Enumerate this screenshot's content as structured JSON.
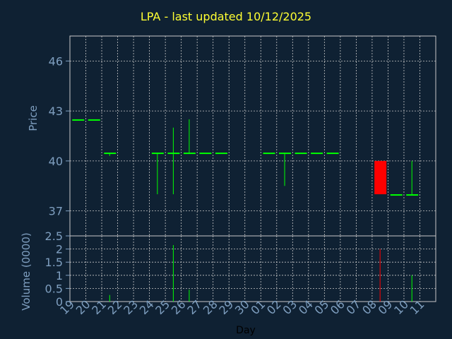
{
  "header": {
    "title": "LPA - last updated 10/12/2025"
  },
  "colors": {
    "background": "#0f2133",
    "axis_text": "#7f9fc0",
    "title": "#ffff33",
    "grid": "#c8c8c8",
    "up": "#00ff00",
    "down": "#ff0000"
  },
  "chart_data": [
    {
      "type": "candlestick",
      "title": "LPA - last updated 10/12/2025",
      "ylabel": "Price",
      "ylim": [
        35.5,
        47.5
      ],
      "yticks": [
        "37",
        "40",
        "43",
        "46"
      ],
      "ytick_values": [
        37,
        40,
        43,
        46
      ],
      "grid": true,
      "categories": [
        "19",
        "20",
        "21",
        "22",
        "23",
        "24",
        "25",
        "26",
        "27",
        "28",
        "29",
        "30",
        "01",
        "02",
        "03",
        "04",
        "05",
        "06",
        "07",
        "08",
        "09",
        "10",
        "11"
      ],
      "candles": [
        {
          "x": "19",
          "open": 42.5,
          "high": 42.5,
          "low": 42.5,
          "close": 42.5
        },
        {
          "x": "20",
          "open": 42.5,
          "high": 42.5,
          "low": 42.5,
          "close": 42.5
        },
        {
          "x": "21",
          "open": 40.5,
          "high": 40.5,
          "low": 40.3,
          "close": 40.5
        },
        {
          "x": "24",
          "open": 40.5,
          "high": 40.5,
          "low": 38.0,
          "close": 40.5
        },
        {
          "x": "25",
          "open": 40.5,
          "high": 42.0,
          "low": 38.0,
          "close": 40.5
        },
        {
          "x": "26",
          "open": 40.5,
          "high": 42.5,
          "low": 40.5,
          "close": 40.5
        },
        {
          "x": "27",
          "open": 40.5,
          "high": 40.5,
          "low": 40.5,
          "close": 40.5
        },
        {
          "x": "28",
          "open": 40.5,
          "high": 40.5,
          "low": 40.5,
          "close": 40.5
        },
        {
          "x": "01",
          "open": 40.5,
          "high": 40.5,
          "low": 40.5,
          "close": 40.5
        },
        {
          "x": "02",
          "open": 40.5,
          "high": 40.5,
          "low": 38.5,
          "close": 40.5
        },
        {
          "x": "03",
          "open": 40.5,
          "high": 40.5,
          "low": 40.5,
          "close": 40.5
        },
        {
          "x": "04",
          "open": 40.5,
          "high": 40.5,
          "low": 40.5,
          "close": 40.5
        },
        {
          "x": "05",
          "open": 40.5,
          "high": 40.5,
          "low": 40.5,
          "close": 40.5
        },
        {
          "x": "08",
          "open": 40.0,
          "high": 40.0,
          "low": 38.0,
          "close": 38.0
        },
        {
          "x": "09",
          "open": 38.0,
          "high": 38.0,
          "low": 38.0,
          "close": 38.0
        },
        {
          "x": "10",
          "open": 38.0,
          "high": 40.0,
          "low": 38.0,
          "close": 38.0
        }
      ]
    },
    {
      "type": "bar",
      "ylabel": "Volume (0000)",
      "xlabel": "Day",
      "ylim": [
        0,
        2.5
      ],
      "yticks": [
        "0",
        "0.5",
        "1",
        "1.5",
        "2",
        "2.5"
      ],
      "ytick_values": [
        0,
        0.5,
        1,
        1.5,
        2,
        2.5
      ],
      "grid": true,
      "categories": [
        "19",
        "20",
        "21",
        "22",
        "23",
        "24",
        "25",
        "26",
        "27",
        "28",
        "29",
        "30",
        "01",
        "02",
        "03",
        "04",
        "05",
        "06",
        "07",
        "08",
        "09",
        "10",
        "11"
      ],
      "bars": [
        {
          "x": "21",
          "value": 0.25,
          "color": "#00ff00"
        },
        {
          "x": "25",
          "value": 2.15,
          "color": "#00ff00"
        },
        {
          "x": "26",
          "value": 0.45,
          "color": "#00ff00"
        },
        {
          "x": "08",
          "value": 2.0,
          "color": "#ff0000"
        },
        {
          "x": "10",
          "value": 1.0,
          "color": "#00ff00"
        }
      ]
    }
  ]
}
